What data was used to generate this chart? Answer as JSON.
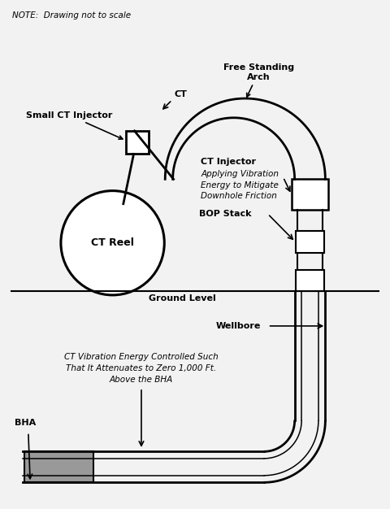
{
  "note": "NOTE:  Drawing not to scale",
  "label_arch": "Free Standing\nArch",
  "label_small_inj": "Small CT Injector",
  "label_ct": "CT",
  "label_ct_inj": "CT Injector",
  "label_ct_inj_sub": "Applying Vibration\nEnergy to Mitigate\nDownhole Friction",
  "label_bop": "BOP Stack",
  "label_ground": "Ground Level",
  "label_wellbore": "Wellbore",
  "label_vibration": "CT Vibration Energy Controlled Such\nThat It Attenuates to Zero 1,000 Ft.\nAbove the BHA",
  "label_bha": "BHA",
  "label_reel": "CT Reel",
  "bg": "#f2f2f2",
  "black": "#000000",
  "gray": "#999999"
}
